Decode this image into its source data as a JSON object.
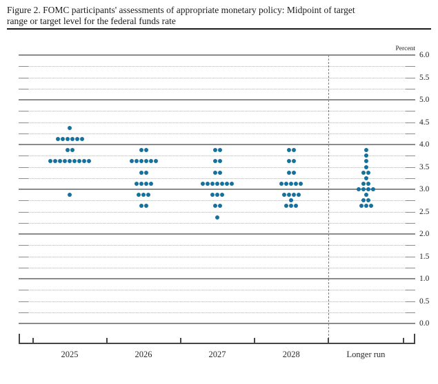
{
  "figure_label": "Figure 2.",
  "chart_data": {
    "type": "scatter",
    "title": "Figure 2. FOMC participants' assessments of appropriate monetary policy: Midpoint of target range or target level for the federal funds rate",
    "unit_label": "Percent",
    "categories": [
      "2025",
      "2026",
      "2027",
      "2028",
      "Longer run"
    ],
    "ylim": [
      0.0,
      6.0
    ],
    "grid_step": 0.25,
    "label_step": 0.5,
    "ytick_labels": [
      "6.0",
      "5.5",
      "5.0",
      "4.5",
      "4.0",
      "3.5",
      "3.0",
      "2.5",
      "2.0",
      "1.5",
      "1.0",
      "0.5",
      "0.0"
    ],
    "ylabel": "Percent",
    "xlabel": "",
    "grid": "dotted lines every 0.25, solid lines at integers, dashed vertical separator before Longer run",
    "legend": "none",
    "dot_color": "#17719f",
    "participants_per_year": 19,
    "series": [
      {
        "category": "2025",
        "dots": [
          {
            "rate": 4.375,
            "count": 1
          },
          {
            "rate": 4.125,
            "count": 6
          },
          {
            "rate": 3.875,
            "count": 2
          },
          {
            "rate": 3.625,
            "count": 9
          },
          {
            "rate": 2.875,
            "count": 1
          }
        ]
      },
      {
        "category": "2026",
        "dots": [
          {
            "rate": 3.875,
            "count": 2
          },
          {
            "rate": 3.625,
            "count": 6
          },
          {
            "rate": 3.375,
            "count": 2
          },
          {
            "rate": 3.125,
            "count": 4
          },
          {
            "rate": 2.875,
            "count": 3
          },
          {
            "rate": 2.625,
            "count": 2
          }
        ]
      },
      {
        "category": "2027",
        "dots": [
          {
            "rate": 3.875,
            "count": 2
          },
          {
            "rate": 3.625,
            "count": 2
          },
          {
            "rate": 3.375,
            "count": 2
          },
          {
            "rate": 3.125,
            "count": 7
          },
          {
            "rate": 2.875,
            "count": 3
          },
          {
            "rate": 2.625,
            "count": 2
          },
          {
            "rate": 2.375,
            "count": 1
          }
        ]
      },
      {
        "category": "2028",
        "dots": [
          {
            "rate": 3.875,
            "count": 2
          },
          {
            "rate": 3.625,
            "count": 2
          },
          {
            "rate": 3.375,
            "count": 2
          },
          {
            "rate": 3.125,
            "count": 5
          },
          {
            "rate": 2.875,
            "count": 4
          },
          {
            "rate": 2.75,
            "count": 1
          },
          {
            "rate": 2.625,
            "count": 3
          }
        ]
      },
      {
        "category": "Longer run",
        "dots": [
          {
            "rate": 3.875,
            "count": 1
          },
          {
            "rate": 3.75,
            "count": 1
          },
          {
            "rate": 3.625,
            "count": 1
          },
          {
            "rate": 3.5,
            "count": 1
          },
          {
            "rate": 3.375,
            "count": 2
          },
          {
            "rate": 3.25,
            "count": 1
          },
          {
            "rate": 3.125,
            "count": 2
          },
          {
            "rate": 3.0,
            "count": 4
          },
          {
            "rate": 2.875,
            "count": 1
          },
          {
            "rate": 2.75,
            "count": 2
          },
          {
            "rate": 2.625,
            "count": 3
          }
        ]
      }
    ]
  }
}
